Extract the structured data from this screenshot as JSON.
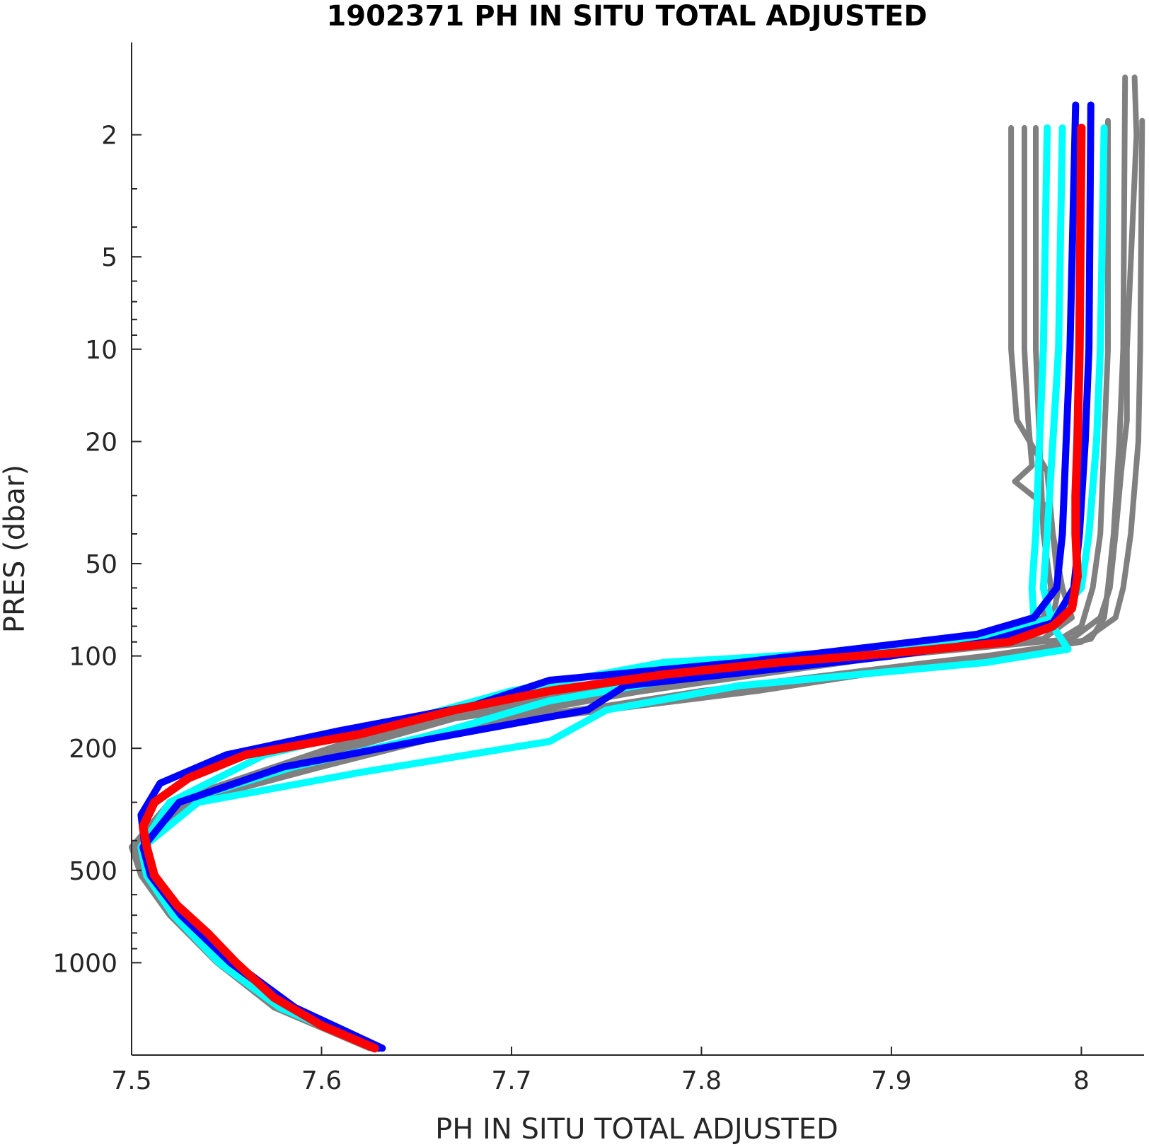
{
  "chart_data": {
    "type": "line",
    "title": "1902371  PH IN SITU TOTAL ADJUSTED",
    "xlabel": "PH IN SITU TOTAL ADJUSTED",
    "ylabel": "PRES (dbar)",
    "xlim": [
      7.5,
      8.033
    ],
    "ylim": [
      1.0,
      2000
    ],
    "y_scale": "log",
    "y_reversed": true,
    "grid": false,
    "legend": "none",
    "x_ticks": [
      {
        "value": 7.5,
        "label": "7.5"
      },
      {
        "value": 7.6,
        "label": "7.6"
      },
      {
        "value": 7.7,
        "label": "7.7"
      },
      {
        "value": 7.8,
        "label": "7.8"
      },
      {
        "value": 7.9,
        "label": "7.9"
      },
      {
        "value": 8.0,
        "label": "8"
      }
    ],
    "y_ticks": [
      {
        "value": 2,
        "label": "2"
      },
      {
        "value": 5,
        "label": "5"
      },
      {
        "value": 10,
        "label": "10"
      },
      {
        "value": 20,
        "label": "20"
      },
      {
        "value": 50,
        "label": "50"
      },
      {
        "value": 100,
        "label": "100"
      },
      {
        "value": 200,
        "label": "200"
      },
      {
        "value": 500,
        "label": "500"
      },
      {
        "value": 1000,
        "label": "1000"
      }
    ],
    "y_minor_ticks": [
      3,
      4,
      6,
      7,
      8,
      9,
      30,
      40,
      60,
      70,
      80,
      90,
      300,
      400,
      600,
      700,
      800,
      900
    ],
    "colors": {
      "gray": "#808080",
      "cyan": "#00ffff",
      "blue": "#0000ff",
      "red": "#ff0000",
      "axis": "#262626"
    },
    "series": [
      {
        "color": "gray",
        "width": 8,
        "pres": [
          1.3,
          2,
          10,
          17,
          25,
          40,
          60,
          75,
          88,
          100,
          115,
          160,
          230,
          300,
          420,
          520,
          700,
          1000,
          1400,
          1900
        ],
        "ph": [
          8.028,
          8.029,
          8.024,
          8.024,
          8.021,
          8.018,
          8.015,
          8.01,
          7.995,
          7.9,
          7.83,
          7.67,
          7.58,
          7.52,
          7.5,
          7.505,
          7.52,
          7.545,
          7.575,
          7.625
        ]
      },
      {
        "color": "gray",
        "width": 8,
        "pres": [
          1.9,
          10,
          17,
          25,
          40,
          60,
          75,
          88,
          100,
          115,
          160,
          230,
          300,
          420,
          520,
          700,
          1000,
          1400,
          1900
        ],
        "ph": [
          7.963,
          7.963,
          7.966,
          7.982,
          7.985,
          7.99,
          7.995,
          7.98,
          7.88,
          7.81,
          7.66,
          7.575,
          7.52,
          7.502,
          7.506,
          7.522,
          7.548,
          7.58,
          7.628
        ]
      },
      {
        "color": "gray",
        "width": 8,
        "pres": [
          1.9,
          10,
          17,
          24,
          27,
          32,
          40,
          60,
          75,
          90,
          100,
          120,
          160,
          230,
          300,
          420,
          520,
          700,
          1000,
          1400,
          1900
        ],
        "ph": [
          7.97,
          7.97,
          7.972,
          7.974,
          7.965,
          7.98,
          7.985,
          7.988,
          7.985,
          7.93,
          7.85,
          7.78,
          7.65,
          7.575,
          7.52,
          7.5,
          7.506,
          7.522,
          7.548,
          7.578,
          7.626
        ]
      },
      {
        "color": "gray",
        "width": 8,
        "pres": [
          1.9,
          10,
          20,
          40,
          60,
          75,
          90,
          100,
          120,
          160,
          230,
          300,
          420,
          520,
          700,
          1000,
          1400,
          1900
        ],
        "ph": [
          7.976,
          7.976,
          7.978,
          7.98,
          7.984,
          7.98,
          7.945,
          7.88,
          7.8,
          7.69,
          7.59,
          7.525,
          7.505,
          7.508,
          7.524,
          7.55,
          7.582,
          7.63
        ]
      },
      {
        "color": "gray",
        "width": 8,
        "pres": [
          1.3,
          10,
          20,
          40,
          60,
          75,
          88,
          100,
          120,
          160,
          230,
          300,
          420,
          520,
          700,
          1000,
          1400,
          1900
        ],
        "ph": [
          8.023,
          8.022,
          8.02,
          8.017,
          8.014,
          8.012,
          8.005,
          7.96,
          7.85,
          7.7,
          7.6,
          7.53,
          7.503,
          7.507,
          7.523,
          7.548,
          7.58,
          7.628
        ]
      },
      {
        "color": "gray",
        "width": 8,
        "pres": [
          1.8,
          10,
          20,
          40,
          60,
          75,
          90,
          100,
          130,
          170,
          230,
          300,
          420,
          520,
          700,
          1000,
          1400,
          1900
        ],
        "ph": [
          8.032,
          8.031,
          8.03,
          8.026,
          8.022,
          8.018,
          8.0,
          7.95,
          7.83,
          7.68,
          7.59,
          7.525,
          7.504,
          7.508,
          7.526,
          7.552,
          7.584,
          7.632
        ]
      },
      {
        "color": "gray",
        "width": 8,
        "pres": [
          1.8,
          10,
          20,
          40,
          60,
          80,
          95,
          105,
          130,
          170,
          230,
          300,
          420,
          520,
          700,
          1000,
          1400,
          1900
        ],
        "ph": [
          8.014,
          8.014,
          8.012,
          8.01,
          8.006,
          8.0,
          7.98,
          7.92,
          7.8,
          7.68,
          7.585,
          7.522,
          7.503,
          7.508,
          7.525,
          7.55,
          7.582,
          7.63
        ]
      },
      {
        "color": "cyan",
        "width": 10,
        "pres": [
          1.9,
          10,
          20,
          40,
          60,
          75,
          85,
          95,
          105,
          130,
          165,
          210,
          300,
          420,
          520,
          700,
          1000,
          1400,
          1900
        ],
        "ph": [
          7.982,
          7.98,
          7.978,
          7.976,
          7.974,
          7.975,
          7.96,
          7.9,
          7.78,
          7.7,
          7.64,
          7.57,
          7.52,
          7.505,
          7.508,
          7.522,
          7.546,
          7.578,
          7.628
        ]
      },
      {
        "color": "cyan",
        "width": 10,
        "pres": [
          1.9,
          10,
          20,
          40,
          60,
          80,
          95,
          105,
          125,
          150,
          190,
          240,
          300,
          420,
          520,
          700,
          1000,
          1400,
          1900
        ],
        "ph": [
          7.99,
          7.988,
          7.985,
          7.982,
          7.98,
          7.985,
          7.993,
          7.95,
          7.82,
          7.75,
          7.72,
          7.62,
          7.535,
          7.506,
          7.51,
          7.526,
          7.552,
          7.584,
          7.631
        ]
      },
      {
        "color": "cyan",
        "width": 10,
        "pres": [
          1.9,
          10,
          20,
          40,
          60,
          75,
          88,
          100,
          115,
          140,
          180,
          230,
          300,
          420,
          520,
          700,
          1000,
          1400,
          1900
        ],
        "ph": [
          8.012,
          8.01,
          8.008,
          8.004,
          8.0,
          7.985,
          7.95,
          7.87,
          7.8,
          7.72,
          7.66,
          7.585,
          7.525,
          7.505,
          7.508,
          7.524,
          7.55,
          7.582,
          7.63
        ]
      },
      {
        "color": "blue",
        "width": 10,
        "pres": [
          1.6,
          10,
          20,
          40,
          60,
          75,
          85,
          95,
          105,
          120,
          145,
          175,
          210,
          260,
          330,
          420,
          520,
          700,
          1000,
          1400,
          1900
        ],
        "ph": [
          7.997,
          7.994,
          7.992,
          7.99,
          7.987,
          7.975,
          7.945,
          7.88,
          7.82,
          7.72,
          7.68,
          7.61,
          7.55,
          7.515,
          7.505,
          7.507,
          7.512,
          7.528,
          7.554,
          7.586,
          7.632
        ]
      },
      {
        "color": "blue",
        "width": 10,
        "pres": [
          1.6,
          10,
          20,
          40,
          60,
          78,
          90,
          100,
          110,
          125,
          150,
          185,
          230,
          300,
          420,
          520,
          700,
          1000,
          1400,
          1900
        ],
        "ph": [
          8.005,
          8.004,
          8.002,
          7.999,
          7.996,
          7.985,
          7.95,
          7.9,
          7.84,
          7.76,
          7.74,
          7.66,
          7.58,
          7.525,
          7.506,
          7.51,
          7.526,
          7.552,
          7.584,
          7.63
        ]
      },
      {
        "color": "red",
        "width": 12,
        "pres": [
          1.9,
          10,
          20,
          30,
          40,
          55,
          70,
          80,
          90,
          98,
          105,
          115,
          130,
          150,
          180,
          210,
          250,
          300,
          360,
          420,
          520,
          650,
          800,
          1000,
          1300,
          1600,
          1900
        ],
        "ph": [
          8.0,
          7.999,
          7.998,
          7.997,
          7.997,
          7.998,
          7.995,
          7.985,
          7.962,
          7.9,
          7.84,
          7.78,
          7.72,
          7.67,
          7.62,
          7.56,
          7.53,
          7.512,
          7.506,
          7.508,
          7.512,
          7.524,
          7.54,
          7.555,
          7.575,
          7.6,
          7.628
        ]
      }
    ]
  }
}
